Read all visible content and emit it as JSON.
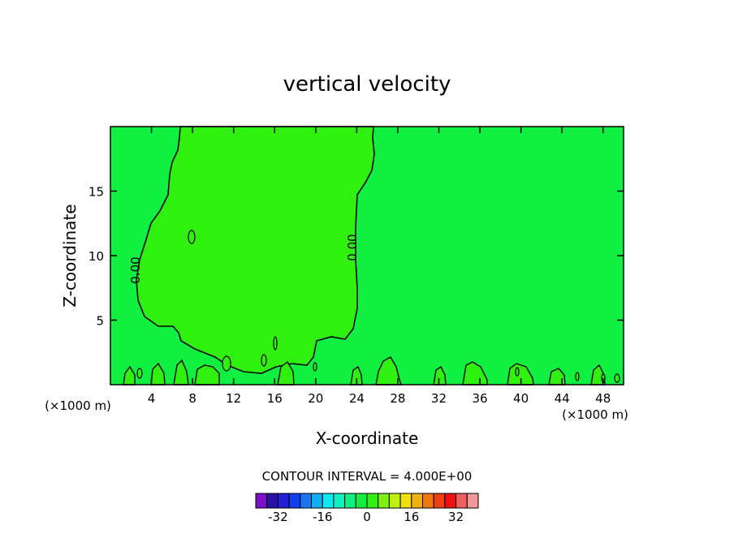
{
  "chart_data": {
    "type": "heatmap",
    "title": "vertical velocity",
    "xlabel": "X-coordinate",
    "ylabel": "Z-coordinate",
    "x_unit_left": "(×1000 m)",
    "x_unit_right": "(×1000 m)",
    "xlim": [
      0,
      50
    ],
    "ylim": [
      0,
      20
    ],
    "x_ticks": [
      4,
      8,
      12,
      16,
      20,
      24,
      28,
      32,
      36,
      40,
      44,
      48
    ],
    "y_ticks": [
      5,
      10,
      15
    ],
    "contour_label": "0.00",
    "contour_interval_text": "CONTOUR INTERVAL = 4.000E+00",
    "colorbar": {
      "colors": [
        "#7a10c8",
        "#2810a8",
        "#2020d8",
        "#1040f0",
        "#1878f0",
        "#10b0f0",
        "#10e8f0",
        "#10f0c0",
        "#10f080",
        "#10f040",
        "#30f010",
        "#80f010",
        "#c0f010",
        "#f0e010",
        "#f0b010",
        "#f07810",
        "#f04010",
        "#f01010",
        "#f06060",
        "#f09898"
      ],
      "tick_labels": [
        "-32",
        "-16",
        "0",
        "16",
        "32"
      ],
      "tick_values": [
        -32,
        -16,
        0,
        16,
        32
      ],
      "vmin": -40,
      "vmax": 40
    },
    "background_color": "#10f040",
    "positive_region_color": "#30f010",
    "contour_color": "#000000",
    "grid": false
  }
}
